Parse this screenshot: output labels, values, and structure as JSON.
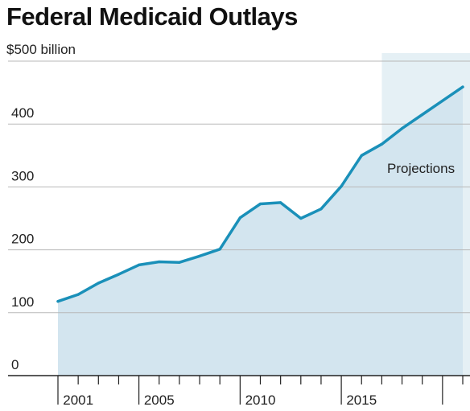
{
  "title": "Federal Medicaid Outlays",
  "chart_data": {
    "type": "area",
    "title": "Federal Medicaid Outlays",
    "unit_label": "$500 billion",
    "x": [
      2000,
      2001,
      2002,
      2003,
      2004,
      2005,
      2006,
      2007,
      2008,
      2009,
      2010,
      2011,
      2012,
      2013,
      2014,
      2015,
      2016,
      2017,
      2018,
      2019,
      2020
    ],
    "series": [
      {
        "values": [
          118,
          129,
          147,
          161,
          176,
          181,
          180,
          190,
          201,
          251,
          273,
          275,
          250,
          265,
          301,
          350,
          368,
          393,
          415,
          437,
          459
        ]
      }
    ],
    "projection_start": 2016,
    "projection_label": "Projections",
    "xlim": [
      2000,
      2020.2
    ],
    "ylim": [
      0,
      500
    ],
    "yticks": [
      0,
      100,
      200,
      300,
      400
    ],
    "ytick_labels": [
      "0",
      "100",
      "200",
      "300",
      "400"
    ],
    "xtick_labels": [
      {
        "x": 2001,
        "label": "2001"
      },
      {
        "x": 2005,
        "label": "2005"
      },
      {
        "x": 2010,
        "label": "2010"
      },
      {
        "x": 2015,
        "label": "2015"
      }
    ],
    "grid": true,
    "colors": {
      "line": "#1a90b9",
      "fill": "#d3e5ef",
      "projection_fill": "#e5f0f5",
      "grid": "#b8b8b8",
      "axis": "#222222"
    }
  }
}
